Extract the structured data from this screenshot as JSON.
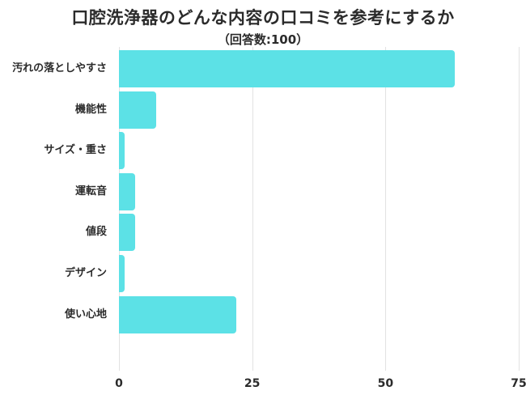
{
  "chart_data": {
    "type": "bar",
    "orientation": "horizontal",
    "title": "口腔洗浄器のどんな内容の口コミを参考にするか",
    "subtitle": "（回答数:100）",
    "categories": [
      "汚れの落としやすさ",
      "機能性",
      "サイズ・重さ",
      "運転音",
      "値段",
      "デザイン",
      "使い心地"
    ],
    "values": [
      63,
      7,
      1,
      3,
      3,
      1,
      22
    ],
    "xlabel": "",
    "ylabel": "",
    "xlim": [
      0,
      75
    ],
    "xticks": [
      "0",
      "25",
      "50",
      "75"
    ],
    "grid": true,
    "legend": "none",
    "bar_color": "#5ce1e6"
  }
}
